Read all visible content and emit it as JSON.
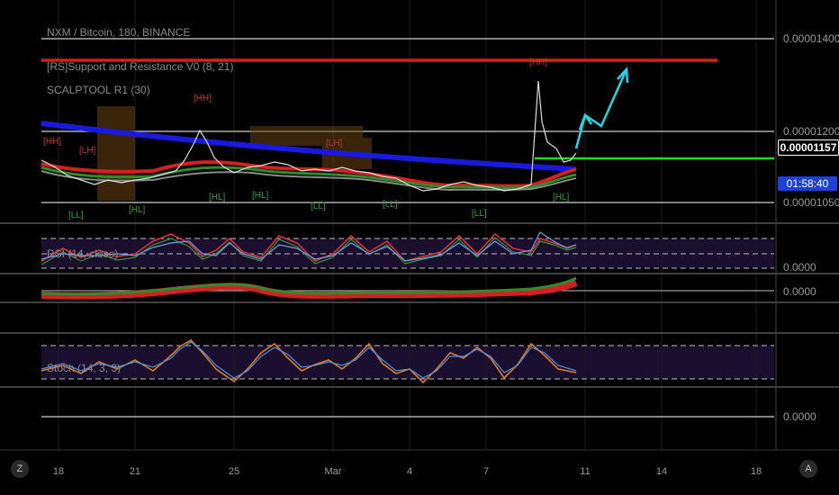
{
  "header": {
    "title": "NXM / Bitcoin, 180, BINANCE",
    "indicator_1": "[RS]Support and Resistance V0 (8, 21)",
    "indicator_2": "SCALPTOOL R1 (30)"
  },
  "price_axis": {
    "labels": [
      "0.00001400",
      "0.00001200",
      "0.00001050"
    ],
    "last_price": "0.00001157",
    "countdown": "01:58:40",
    "last_price_color": "#000000",
    "countdown_color": "#1e3fdc"
  },
  "panes": {
    "rsi_label": "RSI (14, close)",
    "rsi_axis": "0.0000",
    "macd_axis": "0.0000",
    "stoch_label": "Stoch (14, 3, 3)",
    "bottom_axis": "0.0000"
  },
  "time_axis": {
    "labels": [
      "18",
      "21",
      "25",
      "Mar",
      "4",
      "7",
      "11",
      "14",
      "18"
    ]
  },
  "buttons": {
    "left": "Z",
    "right": "A"
  },
  "annotations": {
    "pivots_top": [
      "[HH]",
      "[HH]",
      "[LH]",
      "[LH]",
      "[HH]"
    ],
    "pivots_bottom": [
      "[LL]",
      "[HL]",
      "[HL]",
      "[HL]",
      "[LL]",
      "[LL]",
      "[LL]",
      "[HL]"
    ]
  },
  "colors": {
    "background": "#000000",
    "resistance": "#e01a1a",
    "support": "#18e018",
    "ema_long": "#1a1adf",
    "projection": "#22d6e6",
    "rsi_fill": "#1a0f2e",
    "stoch_fill": "#1a0f2e"
  },
  "chart_data": {
    "type": "line",
    "x": [
      "18",
      "21",
      "25",
      "Mar",
      "4",
      "7",
      "11"
    ],
    "series": [
      {
        "values": [
          1.15e-05,
          1.08e-05,
          1.19e-05,
          1.11e-05,
          1.08e-05,
          1.05e-05,
          1.16e-05
        ]
      }
    ],
    "ylim": [
      1.04e-05,
      1.42e-05
    ],
    "resistance": 1.4e-05,
    "support": 1.157e-05
  }
}
